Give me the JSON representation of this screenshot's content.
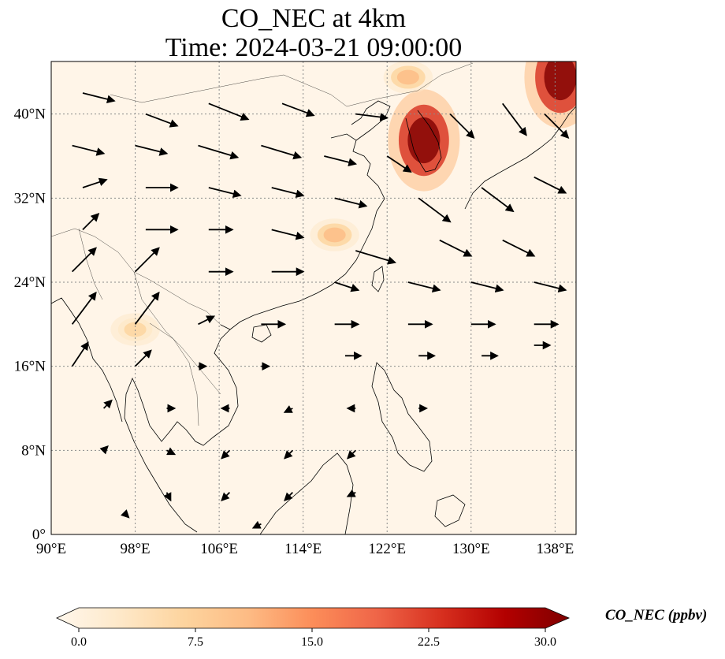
{
  "title": {
    "line1": "CO_NEC at 4km",
    "line2": "Time: 2024-03-21 09:00:00"
  },
  "map": {
    "lon_range": [
      90,
      140
    ],
    "lat_range": [
      0,
      45
    ],
    "lon_ticks": [
      {
        "value": 90,
        "label": "90°E"
      },
      {
        "value": 98,
        "label": "98°E"
      },
      {
        "value": 106,
        "label": "106°E"
      },
      {
        "value": 114,
        "label": "114°E"
      },
      {
        "value": 122,
        "label": "122°E"
      },
      {
        "value": 130,
        "label": "130°E"
      },
      {
        "value": 138,
        "label": "138°E"
      }
    ],
    "lat_ticks": [
      {
        "value": 0,
        "label": "0°"
      },
      {
        "value": 8,
        "label": "8°N"
      },
      {
        "value": 16,
        "label": "16°N"
      },
      {
        "value": 24,
        "label": "24°N"
      },
      {
        "value": 32,
        "label": "32°N"
      },
      {
        "value": 40,
        "label": "40°N"
      }
    ],
    "gridlines": true,
    "hotspots": [
      {
        "lon": 125.5,
        "lat": 37.5,
        "value": 30
      },
      {
        "lon": 138.5,
        "lat": 43.5,
        "value": 30
      },
      {
        "lon": 117,
        "lat": 28.5,
        "value": 12
      },
      {
        "lon": 124,
        "lat": 43.5,
        "value": 12
      },
      {
        "lon": 98,
        "lat": 19.5,
        "value": 8
      }
    ],
    "wind_vectors": [
      {
        "lon": 93,
        "lat": 42,
        "u": 4,
        "v": -1
      },
      {
        "lon": 99,
        "lat": 40,
        "u": 4,
        "v": -1.5
      },
      {
        "lon": 105,
        "lat": 41,
        "u": 5,
        "v": -2
      },
      {
        "lon": 112,
        "lat": 41,
        "u": 4,
        "v": -1.5
      },
      {
        "lon": 119,
        "lat": 40,
        "u": 4,
        "v": -0.5
      },
      {
        "lon": 92,
        "lat": 37,
        "u": 4,
        "v": -1
      },
      {
        "lon": 98,
        "lat": 37,
        "u": 4,
        "v": -1
      },
      {
        "lon": 104,
        "lat": 37,
        "u": 5,
        "v": -1.5
      },
      {
        "lon": 110,
        "lat": 37,
        "u": 5,
        "v": -1.5
      },
      {
        "lon": 116,
        "lat": 36,
        "u": 4,
        "v": -1
      },
      {
        "lon": 122,
        "lat": 36,
        "u": 3,
        "v": -2
      },
      {
        "lon": 128,
        "lat": 40,
        "u": 3,
        "v": -3
      },
      {
        "lon": 133,
        "lat": 41,
        "u": 3,
        "v": -4
      },
      {
        "lon": 137,
        "lat": 40,
        "u": 3,
        "v": -3
      },
      {
        "lon": 93,
        "lat": 33,
        "u": 3,
        "v": 1
      },
      {
        "lon": 99,
        "lat": 33,
        "u": 4,
        "v": 0
      },
      {
        "lon": 105,
        "lat": 33,
        "u": 4,
        "v": -1
      },
      {
        "lon": 111,
        "lat": 33,
        "u": 4,
        "v": -1
      },
      {
        "lon": 117,
        "lat": 32,
        "u": 4,
        "v": -1
      },
      {
        "lon": 125,
        "lat": 32,
        "u": 4,
        "v": -3
      },
      {
        "lon": 131,
        "lat": 33,
        "u": 4,
        "v": -3
      },
      {
        "lon": 136,
        "lat": 34,
        "u": 4,
        "v": -2
      },
      {
        "lon": 93,
        "lat": 29,
        "u": 2,
        "v": 2
      },
      {
        "lon": 99,
        "lat": 29,
        "u": 4,
        "v": 0
      },
      {
        "lon": 105,
        "lat": 29,
        "u": 3,
        "v": 0
      },
      {
        "lon": 111,
        "lat": 29,
        "u": 4,
        "v": -1
      },
      {
        "lon": 119,
        "lat": 27,
        "u": 5,
        "v": -1.5
      },
      {
        "lon": 127,
        "lat": 28,
        "u": 4,
        "v": -2
      },
      {
        "lon": 133,
        "lat": 28,
        "u": 4,
        "v": -2
      },
      {
        "lon": 92,
        "lat": 25,
        "u": 3,
        "v": 3
      },
      {
        "lon": 98,
        "lat": 25,
        "u": 3,
        "v": 3
      },
      {
        "lon": 105,
        "lat": 25,
        "u": 3,
        "v": 0
      },
      {
        "lon": 111,
        "lat": 25,
        "u": 4,
        "v": 0
      },
      {
        "lon": 117,
        "lat": 24,
        "u": 3,
        "v": -1
      },
      {
        "lon": 124,
        "lat": 24,
        "u": 4,
        "v": -1
      },
      {
        "lon": 130,
        "lat": 24,
        "u": 4,
        "v": -1
      },
      {
        "lon": 136,
        "lat": 24,
        "u": 4,
        "v": -1
      },
      {
        "lon": 92,
        "lat": 20,
        "u": 3,
        "v": 4
      },
      {
        "lon": 98,
        "lat": 20,
        "u": 3,
        "v": 4
      },
      {
        "lon": 104,
        "lat": 20,
        "u": 2,
        "v": 1
      },
      {
        "lon": 110,
        "lat": 20,
        "u": 3,
        "v": 0
      },
      {
        "lon": 117,
        "lat": 20,
        "u": 3,
        "v": 0
      },
      {
        "lon": 124,
        "lat": 20,
        "u": 3,
        "v": 0
      },
      {
        "lon": 130,
        "lat": 20,
        "u": 3,
        "v": 0
      },
      {
        "lon": 136,
        "lat": 20,
        "u": 3,
        "v": 0
      },
      {
        "lon": 92,
        "lat": 16,
        "u": 2,
        "v": 3
      },
      {
        "lon": 98,
        "lat": 16,
        "u": 2,
        "v": 2
      },
      {
        "lon": 104,
        "lat": 16,
        "u": 1,
        "v": 0
      },
      {
        "lon": 110,
        "lat": 16,
        "u": 1,
        "v": 0
      },
      {
        "lon": 118,
        "lat": 17,
        "u": 2,
        "v": 0
      },
      {
        "lon": 125,
        "lat": 17,
        "u": 2,
        "v": 0
      },
      {
        "lon": 131,
        "lat": 17,
        "u": 2,
        "v": 0
      },
      {
        "lon": 136,
        "lat": 18,
        "u": 2,
        "v": 0
      },
      {
        "lon": 95,
        "lat": 12,
        "u": 1,
        "v": 1
      },
      {
        "lon": 101,
        "lat": 12,
        "u": 1,
        "v": 0
      },
      {
        "lon": 107,
        "lat": 12,
        "u": -1,
        "v": 0
      },
      {
        "lon": 113,
        "lat": 12,
        "u": -1,
        "v": -0.5
      },
      {
        "lon": 119,
        "lat": 12,
        "u": -1,
        "v": 0
      },
      {
        "lon": 125,
        "lat": 12,
        "u": 1,
        "v": 0
      },
      {
        "lon": 95,
        "lat": 8,
        "u": 0.5,
        "v": 0.5
      },
      {
        "lon": 101,
        "lat": 8,
        "u": 1,
        "v": -0.5
      },
      {
        "lon": 107,
        "lat": 8,
        "u": -1,
        "v": -1
      },
      {
        "lon": 113,
        "lat": 8,
        "u": -1,
        "v": -1
      },
      {
        "lon": 119,
        "lat": 8,
        "u": -1,
        "v": -1
      },
      {
        "lon": 101,
        "lat": 4,
        "u": 0.5,
        "v": -1
      },
      {
        "lon": 107,
        "lat": 4,
        "u": -1,
        "v": -1
      },
      {
        "lon": 113,
        "lat": 4,
        "u": -1,
        "v": -1
      },
      {
        "lon": 119,
        "lat": 4,
        "u": -1,
        "v": -0.5
      },
      {
        "lon": 97,
        "lat": 2,
        "u": 0.5,
        "v": -0.5
      },
      {
        "lon": 110,
        "lat": 1,
        "u": -1,
        "v": -0.5
      }
    ]
  },
  "colorbar": {
    "label": "CO_NEC (ppbv)",
    "min": 0,
    "max": 30,
    "ticks": [
      {
        "value": 0,
        "label": "0.0"
      },
      {
        "value": 7.5,
        "label": "7.5"
      },
      {
        "value": 15,
        "label": "15.0"
      },
      {
        "value": 22.5,
        "label": "22.5"
      },
      {
        "value": 30,
        "label": "30.0"
      }
    ],
    "colors": [
      "#fff7ec",
      "#fee8c8",
      "#fdd49e",
      "#fdbb84",
      "#fc8d59",
      "#ef6548",
      "#d7301f",
      "#b30000",
      "#7f0000"
    ]
  },
  "style": {
    "land_fill": "#fff5e6",
    "ocean_fill": "#fff5e8",
    "coast_color": "#000000",
    "grid_color": "#8a8a8a",
    "arrow_color": "#000000"
  }
}
